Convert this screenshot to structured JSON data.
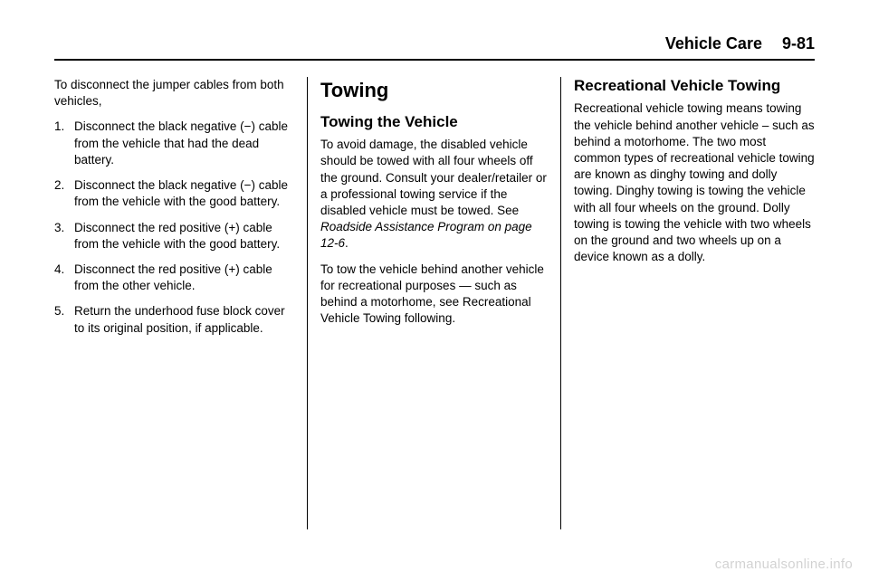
{
  "header": {
    "section": "Vehicle Care",
    "page": "9-81"
  },
  "col1": {
    "intro": "To disconnect the jumper cables from both vehicles,",
    "steps": [
      "Disconnect the black negative (−) cable from the vehicle that had the dead battery.",
      "Disconnect the black negative (−) cable from the vehicle with the good battery.",
      "Disconnect the red positive (+) cable from the vehicle with the good battery.",
      "Disconnect the red positive (+) cable from the other vehicle.",
      "Return the underhood fuse block cover to its original position, if applicable."
    ]
  },
  "col2": {
    "h1": "Towing",
    "h2": "Towing the Vehicle",
    "p1a": "To avoid damage, the disabled vehicle should be towed with all four wheels off the ground. Consult your dealer/retailer or a professional towing service if the disabled vehicle must be towed. See ",
    "p1b": "Roadside Assistance Program on page 12‑6",
    "p1c": ".",
    "p2": "To tow the vehicle behind another vehicle for recreational purposes — such as behind a motorhome, see Recreational Vehicle Towing following."
  },
  "col3": {
    "h2": "Recreational Vehicle Towing",
    "p1": "Recreational vehicle towing means towing the vehicle behind another vehicle – such as behind a motorhome. The two most common types of recreational vehicle towing are known as dinghy towing and dolly towing. Dinghy towing is towing the vehicle with all four wheels on the ground. Dolly towing is towing the vehicle with two wheels on the ground and two wheels up on a device known as a dolly."
  },
  "watermark": "carmanualsonline.info"
}
